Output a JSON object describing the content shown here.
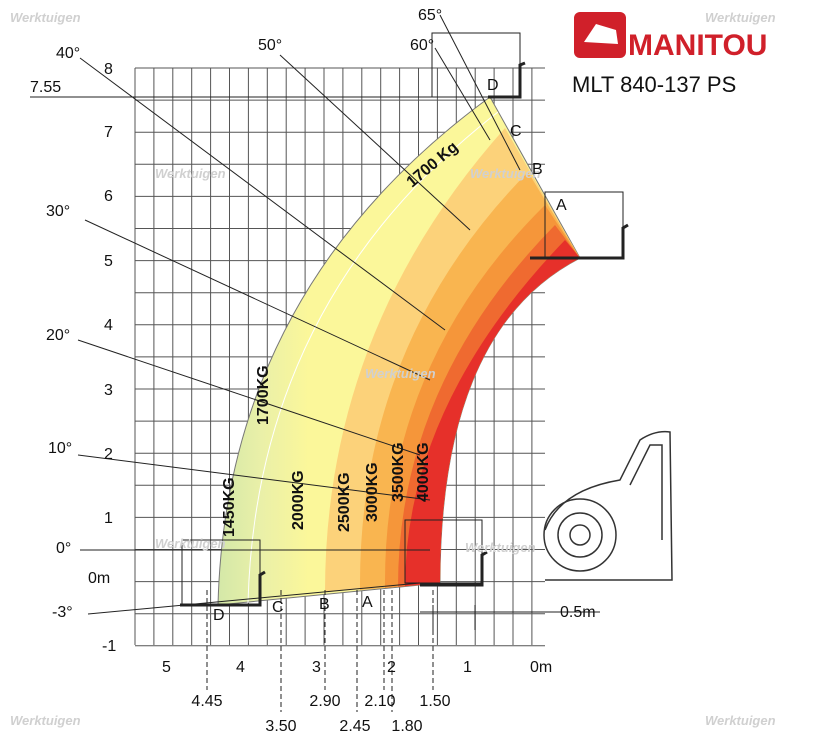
{
  "brand": "MANITOU",
  "model": "MLT 840-137 PS",
  "watermark": "Werktuigen",
  "angles": [
    "65°",
    "60°",
    "50°",
    "40°",
    "30°",
    "20°",
    "10°",
    "0°",
    "-3°"
  ],
  "y_labels": [
    "8",
    "7",
    "6",
    "5",
    "4",
    "3",
    "2",
    "1",
    "0m",
    "-1"
  ],
  "max_height": "7.55",
  "x_labels": [
    "5",
    "4",
    "3",
    "2",
    "1",
    "0m"
  ],
  "reach_dims": [
    "4.45",
    "3.50",
    "2.90",
    "2.45",
    "2.10",
    "1.80",
    "1.50"
  ],
  "fork_dim": "0.5m",
  "loads": {
    "top": "1700 Kg",
    "side": "1700KG",
    "l1450": "1450KG",
    "l2000": "2000KG",
    "l2500": "2500KG",
    "l3000": "3000KG",
    "l3500": "3500KG",
    "l4000": "4000KG"
  },
  "points_top": [
    "D",
    "C",
    "B",
    "A"
  ],
  "points_bottom": [
    "D",
    "C",
    "B",
    "A"
  ]
}
